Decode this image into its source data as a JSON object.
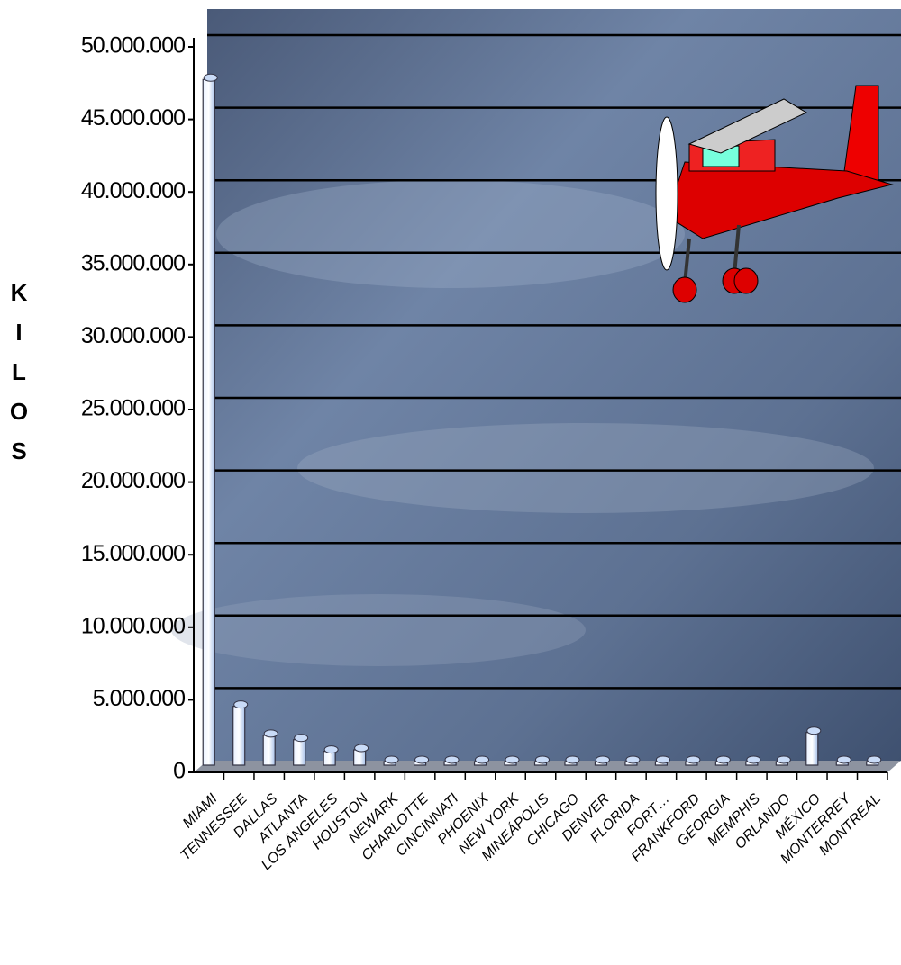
{
  "chart_data": {
    "type": "bar",
    "y_label": "KILOS",
    "categories": [
      "MIAMI",
      "TENNESSEE",
      "DALLAS",
      "ATLANTA",
      "LOS ÁNGELES",
      "HOUSTON",
      "NEWARK",
      "CHARLOTTE",
      "CINCINNATI",
      "PHOENIX",
      "NEW YORK",
      "MINEÁPOLIS",
      "CHICAGO",
      "DENVER",
      "FLORIDA",
      "FORT…",
      "FRANKFORD",
      "GEORGIA",
      "MEMPHIS",
      "ORLANDO",
      "MÉXICO",
      "MONTERREY",
      "MONTREAL"
    ],
    "values": [
      47500000,
      4300000,
      2300000,
      2000000,
      1200000,
      1300000,
      500000,
      500000,
      500000,
      500000,
      500000,
      500000,
      500000,
      500000,
      500000,
      500000,
      500000,
      500000,
      500000,
      500000,
      2500000,
      500000,
      500000
    ],
    "color": "#c9dbf7",
    "ylim": [
      0,
      50000000
    ],
    "yticks": [
      0,
      {
        "value": 5000000,
        "label": "5.000.000"
      },
      {
        "value": 10000000,
        "label": "10.000.000"
      },
      {
        "value": 15000000,
        "label": "15.000.000"
      },
      {
        "value": 20000000,
        "label": "20.000.000"
      },
      {
        "value": 25000000,
        "label": "25.000.000"
      },
      {
        "value": 30000000,
        "label": "30.000.000"
      },
      {
        "value": 35000000,
        "label": "35.000.000"
      },
      {
        "value": 40000000,
        "label": "40.000.000"
      },
      {
        "value": 45000000,
        "label": "45.000.000"
      },
      {
        "value": 50000000,
        "label": "50.000.000"
      }
    ],
    "grid": true
  }
}
